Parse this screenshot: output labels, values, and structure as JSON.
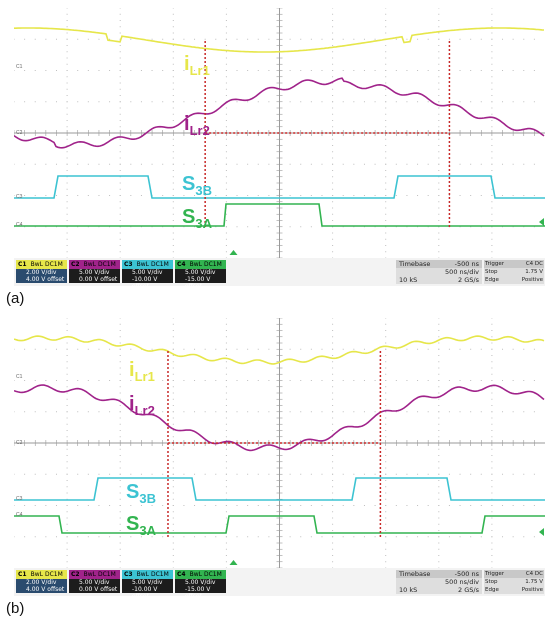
{
  "chart_data": [
    {
      "type": "line",
      "panel_label": "(a)",
      "signals": [
        {
          "name": "iLr1",
          "main": "i",
          "sub": "Lr1",
          "color": "#e6e64a",
          "channel": "C1"
        },
        {
          "name": "iLr2",
          "main": "i",
          "sub": "Lr2",
          "color": "#a0238a",
          "channel": "C2"
        },
        {
          "name": "S3B",
          "main": "S",
          "sub": "3B",
          "color": "#3cc3d2",
          "channel": "C3"
        },
        {
          "name": "S3A",
          "main": "S",
          "sub": "3A",
          "color": "#32b450",
          "channel": "C4"
        }
      ],
      "channels": [
        {
          "id": "C1",
          "coupling": "DC1M",
          "bw": "BwL",
          "vdiv": "2.00 V/div",
          "offset": "4.00 V offset",
          "color": "#e6e64a"
        },
        {
          "id": "C2",
          "coupling": "DC1M",
          "bw": "BwL",
          "vdiv": "5.00 V/div",
          "offset": "0.00 V offset",
          "color": "#a0238a"
        },
        {
          "id": "C3",
          "coupling": "DC1M",
          "bw": "BwL",
          "vdiv": "5.00 V/div",
          "offset": "-10.00 V offset",
          "color": "#3cc3d2"
        },
        {
          "id": "C4",
          "coupling": "DC1M",
          "bw": "BwL",
          "vdiv": "5.00 V/div",
          "offset": "-15.00 V offset",
          "color": "#32b450"
        }
      ],
      "timebase": {
        "label": "Timebase",
        "value": "-500 ns",
        "rate": "500 ns/div",
        "samples": "10 kS",
        "srate": "2 GS/s"
      },
      "trigger": {
        "label": "Trigger",
        "coupling": "C4 DC",
        "mode": "Stop",
        "level": "1.75 V",
        "type": "Edge",
        "slope": "Positive"
      },
      "ground_markers": [
        "C1",
        "C2",
        "C3",
        "C4"
      ],
      "markers": {
        "vertical_divs": [
          3.6,
          8.2
        ],
        "horizontal_crossing_div": 6.0
      }
    },
    {
      "type": "line",
      "panel_label": "(b)",
      "signals": [
        {
          "name": "iLr1",
          "main": "i",
          "sub": "Lr1",
          "color": "#e6e64a",
          "channel": "C1"
        },
        {
          "name": "iLr2",
          "main": "i",
          "sub": "Lr2",
          "color": "#a0238a",
          "channel": "C2"
        },
        {
          "name": "S3B",
          "main": "S",
          "sub": "3B",
          "color": "#3cc3d2",
          "channel": "C3"
        },
        {
          "name": "S3A",
          "main": "S",
          "sub": "3A",
          "color": "#32b450",
          "channel": "C4"
        }
      ],
      "channels": [
        {
          "id": "C1",
          "coupling": "DC1M",
          "bw": "BwL",
          "vdiv": "2.00 V/div",
          "offset": "4.00 V offset",
          "color": "#e6e64a"
        },
        {
          "id": "C2",
          "coupling": "DC1M",
          "bw": "BwL",
          "vdiv": "5.00 V/div",
          "offset": "0.00 V offset",
          "color": "#a0238a"
        },
        {
          "id": "C3",
          "coupling": "DC1M",
          "bw": "BwL",
          "vdiv": "5.00 V/div",
          "offset": "-10.00 V offset",
          "color": "#3cc3d2"
        },
        {
          "id": "C4",
          "coupling": "DC1M",
          "bw": "BwL",
          "vdiv": "5.00 V/div",
          "offset": "-15.00 V offset",
          "color": "#32b450"
        }
      ],
      "timebase": {
        "label": "Timebase",
        "value": "-500 ns",
        "rate": "500 ns/div",
        "samples": "10 kS",
        "srate": "2 GS/s"
      },
      "trigger": {
        "label": "Trigger",
        "coupling": "C4 DC",
        "mode": "Stop",
        "level": "1.75 V",
        "type": "Edge",
        "slope": "Positive"
      },
      "ground_markers": [
        "C1",
        "C2",
        "C3",
        "C4"
      ],
      "markers": {
        "vertical_divs": [
          2.9,
          6.9
        ],
        "horizontal_crossing_div": 6.0
      }
    }
  ]
}
